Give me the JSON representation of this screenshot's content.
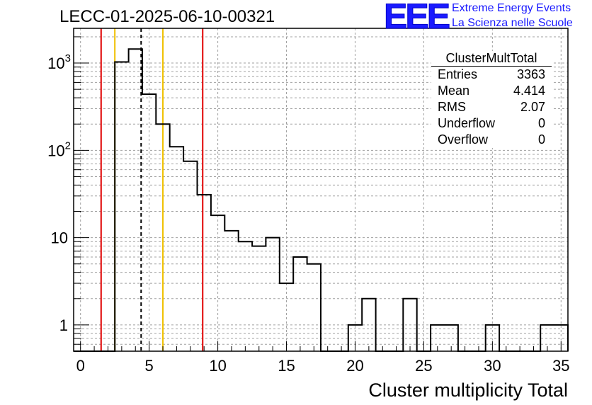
{
  "header": {
    "run_title": "LECC-01-2025-06-10-00321",
    "logo_letters": "EEE",
    "logo_line1": "Extreme Energy Events",
    "logo_line2": "La Scienza nelle Scuole"
  },
  "stats_box": {
    "name": "ClusterMultTotal",
    "rows": [
      {
        "label": "Entries",
        "value": "3363"
      },
      {
        "label": "Mean",
        "value": "4.414"
      },
      {
        "label": "RMS",
        "value": "2.07"
      },
      {
        "label": "Underflow",
        "value": "0"
      },
      {
        "label": "Overflow",
        "value": "0"
      }
    ]
  },
  "chart_data": {
    "type": "bar",
    "subtype": "step-histogram",
    "title": "LECC-01-2025-06-10-00321",
    "xlabel": "Cluster multiplicity Total",
    "ylabel": "",
    "x_scale": "linear",
    "y_scale": "log",
    "xlim": [
      -0.5,
      35.5
    ],
    "ylim": [
      0.5,
      2500
    ],
    "grid": true,
    "x_ticks": [
      0,
      5,
      10,
      15,
      20,
      25,
      30,
      35
    ],
    "x_tick_labels": [
      "0",
      "5",
      "10",
      "15",
      "20",
      "25",
      "30",
      "35"
    ],
    "y_ticks": [
      1,
      10,
      100,
      1000
    ],
    "y_tick_labels": [
      "1",
      "10",
      "10^2",
      "10^3"
    ],
    "bin_width": 1,
    "bins": [
      {
        "x": 0,
        "count": 0
      },
      {
        "x": 1,
        "count": 0
      },
      {
        "x": 2,
        "count": 0
      },
      {
        "x": 3,
        "count": 1030
      },
      {
        "x": 4,
        "count": 1450
      },
      {
        "x": 5,
        "count": 440
      },
      {
        "x": 6,
        "count": 200
      },
      {
        "x": 7,
        "count": 110
      },
      {
        "x": 8,
        "count": 75
      },
      {
        "x": 9,
        "count": 31
      },
      {
        "x": 10,
        "count": 18
      },
      {
        "x": 11,
        "count": 12
      },
      {
        "x": 12,
        "count": 9
      },
      {
        "x": 13,
        "count": 8
      },
      {
        "x": 14,
        "count": 10
      },
      {
        "x": 15,
        "count": 3
      },
      {
        "x": 16,
        "count": 6
      },
      {
        "x": 17,
        "count": 5
      },
      {
        "x": 18,
        "count": 0
      },
      {
        "x": 19,
        "count": 0
      },
      {
        "x": 20,
        "count": 1
      },
      {
        "x": 21,
        "count": 2
      },
      {
        "x": 22,
        "count": 0
      },
      {
        "x": 23,
        "count": 0
      },
      {
        "x": 24,
        "count": 2
      },
      {
        "x": 25,
        "count": 0
      },
      {
        "x": 26,
        "count": 1
      },
      {
        "x": 27,
        "count": 1
      },
      {
        "x": 28,
        "count": 0
      },
      {
        "x": 29,
        "count": 0
      },
      {
        "x": 30,
        "count": 1
      },
      {
        "x": 31,
        "count": 0
      },
      {
        "x": 32,
        "count": 0
      },
      {
        "x": 33,
        "count": 0
      },
      {
        "x": 34,
        "count": 1
      },
      {
        "x": 35,
        "count": 1
      }
    ],
    "reference_lines": [
      {
        "x": 1.5,
        "color": "#e00000",
        "style": "solid"
      },
      {
        "x": 2.5,
        "color": "#f0c000",
        "style": "solid"
      },
      {
        "x": 4.414,
        "color": "#000000",
        "style": "dashed"
      },
      {
        "x": 6.0,
        "color": "#f0c000",
        "style": "solid"
      },
      {
        "x": 8.9,
        "color": "#e00000",
        "style": "solid"
      }
    ]
  }
}
